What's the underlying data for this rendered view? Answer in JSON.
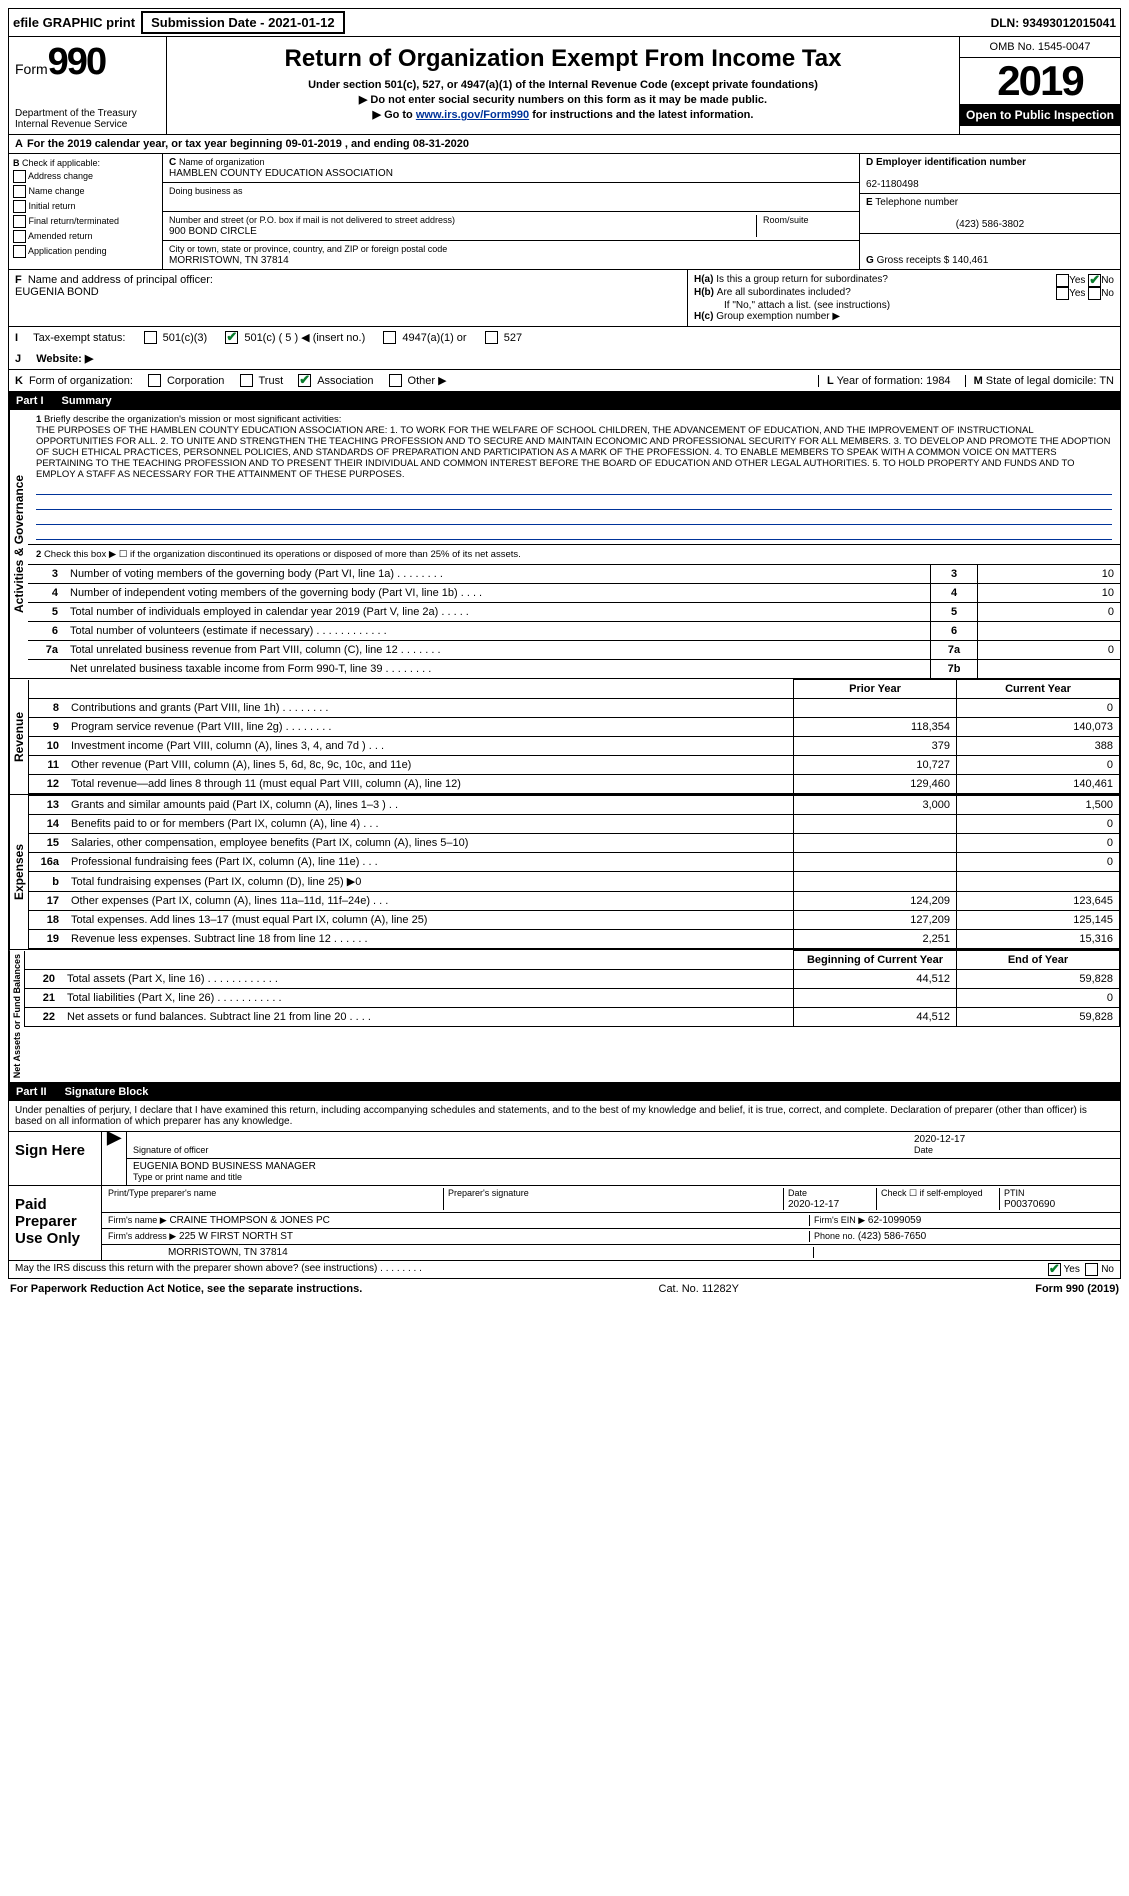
{
  "topbar": {
    "efile": "efile GRAPHIC print",
    "subdate_label": "Submission Date - 2021-01-12",
    "dln": "DLN: 93493012015041"
  },
  "header": {
    "form_label": "Form",
    "form_num": "990",
    "dept": "Department of the Treasury\nInternal Revenue Service",
    "title": "Return of Organization Exempt From Income Tax",
    "sub1": "Under section 501(c), 527, or 4947(a)(1) of the Internal Revenue Code (except private foundations)",
    "sub2": "▶ Do not enter social security numbers on this form as it may be made public.",
    "sub3": "▶ Go to www.irs.gov/Form990 for instructions and the latest information.",
    "omb": "OMB No. 1545-0047",
    "year": "2019",
    "open": "Open to Public Inspection"
  },
  "A": {
    "text": "For the 2019 calendar year, or tax year beginning 09-01-2019   , and ending 08-31-2020"
  },
  "B": {
    "label": "Check if applicable:",
    "opts": [
      "Address change",
      "Name change",
      "Initial return",
      "Final return/terminated",
      "Amended return",
      "Application pending"
    ]
  },
  "C": {
    "name_label": "Name of organization",
    "name": "HAMBLEN COUNTY EDUCATION ASSOCIATION",
    "dba_label": "Doing business as",
    "dba": "",
    "street_label": "Number and street (or P.O. box if mail is not delivered to street address)",
    "street": "900 BOND CIRCLE",
    "room_label": "Room/suite",
    "city_label": "City or town, state or province, country, and ZIP or foreign postal code",
    "city": "MORRISTOWN, TN  37814"
  },
  "D": {
    "label": "Employer identification number",
    "val": "62-1180498"
  },
  "E": {
    "label": "Telephone number",
    "val": "(423) 586-3802"
  },
  "G": {
    "label": "Gross receipts $",
    "val": "140,461"
  },
  "F": {
    "label": "Name and address of principal officer:",
    "val": "EUGENIA BOND"
  },
  "H": {
    "a": "Is this a group return for subordinates?",
    "b": "Are all subordinates included?",
    "note": "If \"No,\" attach a list. (see instructions)",
    "c": "Group exemption number ▶",
    "yes": "Yes",
    "no": "No"
  },
  "I": {
    "label": "Tax-exempt status:",
    "o1": "501(c)(3)",
    "o2": "501(c) ( 5 ) ◀ (insert no.)",
    "o3": "4947(a)(1) or",
    "o4": "527"
  },
  "J": {
    "label": "Website: ▶"
  },
  "K": {
    "label": "Form of organization:",
    "o1": "Corporation",
    "o2": "Trust",
    "o3": "Association",
    "o4": "Other ▶"
  },
  "L": {
    "label": "Year of formation:",
    "val": "1984"
  },
  "M": {
    "label": "State of legal domicile:",
    "val": "TN"
  },
  "part1": {
    "label": "Part I",
    "title": "Summary",
    "q1": "Briefly describe the organization's mission or most significant activities:",
    "mission": "THE PURPOSES OF THE HAMBLEN COUNTY EDUCATION ASSOCIATION ARE: 1. TO WORK FOR THE WELFARE OF SCHOOL CHILDREN, THE ADVANCEMENT OF EDUCATION, AND THE IMPROVEMENT OF INSTRUCTIONAL OPPORTUNITIES FOR ALL. 2. TO UNITE AND STRENGTHEN THE TEACHING PROFESSION AND TO SECURE AND MAINTAIN ECONOMIC AND PROFESSIONAL SECURITY FOR ALL MEMBERS. 3. TO DEVELOP AND PROMOTE THE ADOPTION OF SUCH ETHICAL PRACTICES, PERSONNEL POLICIES, AND STANDARDS OF PREPARATION AND PARTICIPATION AS A MARK OF THE PROFESSION. 4. TO ENABLE MEMBERS TO SPEAK WITH A COMMON VOICE ON MATTERS PERTAINING TO THE TEACHING PROFESSION AND TO PRESENT THEIR INDIVIDUAL AND COMMON INTEREST BEFORE THE BOARD OF EDUCATION AND OTHER LEGAL AUTHORITIES. 5. TO HOLD PROPERTY AND FUNDS AND TO EMPLOY A STAFF AS NECESSARY FOR THE ATTAINMENT OF THESE PURPOSES.",
    "q2": "Check this box ▶ ☐ if the organization discontinued its operations or disposed of more than 25% of its net assets.",
    "rows_gov": [
      {
        "n": "3",
        "t": "Number of voting members of the governing body (Part VI, line 1a)  .   .   .   .   .   .   .   .",
        "b": "3",
        "v": "10"
      },
      {
        "n": "4",
        "t": "Number of independent voting members of the governing body (Part VI, line 1b)   .   .   .   .",
        "b": "4",
        "v": "10"
      },
      {
        "n": "5",
        "t": "Total number of individuals employed in calendar year 2019 (Part V, line 2a)   .   .   .   .   .",
        "b": "5",
        "v": "0"
      },
      {
        "n": "6",
        "t": "Total number of volunteers (estimate if necessary)   .   .   .   .   .   .   .   .   .   .   .   .",
        "b": "6",
        "v": ""
      },
      {
        "n": "7a",
        "t": "Total unrelated business revenue from Part VIII, column (C), line 12   .   .   .   .   .   .   .",
        "b": "7a",
        "v": "0"
      },
      {
        "n": "",
        "t": "Net unrelated business taxable income from Form 990-T, line 39   .   .   .   .   .   .   .   .",
        "b": "7b",
        "v": ""
      }
    ],
    "col_prior": "Prior Year",
    "col_current": "Current Year",
    "rows_rev": [
      {
        "n": "8",
        "t": "Contributions and grants (Part VIII, line 1h)   .   .   .   .   .   .   .   .",
        "p": "",
        "c": "0"
      },
      {
        "n": "9",
        "t": "Program service revenue (Part VIII, line 2g)   .   .   .   .   .   .   .   .",
        "p": "118,354",
        "c": "140,073"
      },
      {
        "n": "10",
        "t": "Investment income (Part VIII, column (A), lines 3, 4, and 7d )   .   .   .",
        "p": "379",
        "c": "388"
      },
      {
        "n": "11",
        "t": "Other revenue (Part VIII, column (A), lines 5, 6d, 8c, 9c, 10c, and 11e)",
        "p": "10,727",
        "c": "0"
      },
      {
        "n": "12",
        "t": "Total revenue—add lines 8 through 11 (must equal Part VIII, column (A), line 12)",
        "p": "129,460",
        "c": "140,461"
      }
    ],
    "rows_exp": [
      {
        "n": "13",
        "t": "Grants and similar amounts paid (Part IX, column (A), lines 1–3 )   .   .",
        "p": "3,000",
        "c": "1,500"
      },
      {
        "n": "14",
        "t": "Benefits paid to or for members (Part IX, column (A), line 4)   .   .   .",
        "p": "",
        "c": "0"
      },
      {
        "n": "15",
        "t": "Salaries, other compensation, employee benefits (Part IX, column (A), lines 5–10)",
        "p": "",
        "c": "0"
      },
      {
        "n": "16a",
        "t": "Professional fundraising fees (Part IX, column (A), line 11e)   .   .   .",
        "p": "",
        "c": "0"
      },
      {
        "n": "b",
        "t": "Total fundraising expenses (Part IX, column (D), line 25) ▶0",
        "p": "SHADE",
        "c": "SHADE"
      },
      {
        "n": "17",
        "t": "Other expenses (Part IX, column (A), lines 11a–11d, 11f–24e)   .   .   .",
        "p": "124,209",
        "c": "123,645"
      },
      {
        "n": "18",
        "t": "Total expenses. Add lines 13–17 (must equal Part IX, column (A), line 25)",
        "p": "127,209",
        "c": "125,145"
      },
      {
        "n": "19",
        "t": "Revenue less expenses. Subtract line 18 from line 12   .   .   .   .   .   .",
        "p": "2,251",
        "c": "15,316"
      }
    ],
    "col_begin": "Beginning of Current Year",
    "col_end": "End of Year",
    "rows_net": [
      {
        "n": "20",
        "t": "Total assets (Part X, line 16)   .   .   .   .   .   .   .   .   .   .   .   .",
        "p": "44,512",
        "c": "59,828"
      },
      {
        "n": "21",
        "t": "Total liabilities (Part X, line 26)   .   .   .   .   .   .   .   .   .   .   .",
        "p": "",
        "c": "0"
      },
      {
        "n": "22",
        "t": "Net assets or fund balances. Subtract line 21 from line 20   .   .   .   .",
        "p": "44,512",
        "c": "59,828"
      }
    ],
    "vlabels": {
      "gov": "Activities & Governance",
      "rev": "Revenue",
      "exp": "Expenses",
      "net": "Net Assets or Fund Balances"
    }
  },
  "part2": {
    "label": "Part II",
    "title": "Signature Block",
    "decl": "Under penalties of perjury, I declare that I have examined this return, including accompanying schedules and statements, and to the best of my knowledge and belief, it is true, correct, and complete. Declaration of preparer (other than officer) is based on all information of which preparer has any knowledge.",
    "sign_here": "Sign Here",
    "sig_officer": "Signature of officer",
    "date": "Date",
    "date_val": "2020-12-17",
    "name_title": "EUGENIA BOND  BUSINESS MANAGER",
    "name_label": "Type or print name and title",
    "paid": "Paid Preparer Use Only",
    "p_name_label": "Print/Type preparer's name",
    "p_sig_label": "Preparer's signature",
    "p_date_label": "Date",
    "p_date": "2020-12-17",
    "p_check": "Check ☐ if self-employed",
    "ptin_label": "PTIN",
    "ptin": "P00370690",
    "firm_name_label": "Firm's name    ▶",
    "firm_name": "CRAINE THOMPSON & JONES PC",
    "firm_ein_label": "Firm's EIN ▶",
    "firm_ein": "62-1099059",
    "firm_addr_label": "Firm's address ▶",
    "firm_addr": "225 W FIRST NORTH ST",
    "firm_city": "MORRISTOWN, TN  37814",
    "phone_label": "Phone no.",
    "phone": "(423) 586-7650",
    "discuss": "May the IRS discuss this return with the preparer shown above? (see instructions)   .   .   .   .   .   .   .   .",
    "yes": "Yes",
    "no": "No"
  },
  "footer": {
    "left": "For Paperwork Reduction Act Notice, see the separate instructions.",
    "mid": "Cat. No. 11282Y",
    "right": "Form 990 (2019)"
  }
}
